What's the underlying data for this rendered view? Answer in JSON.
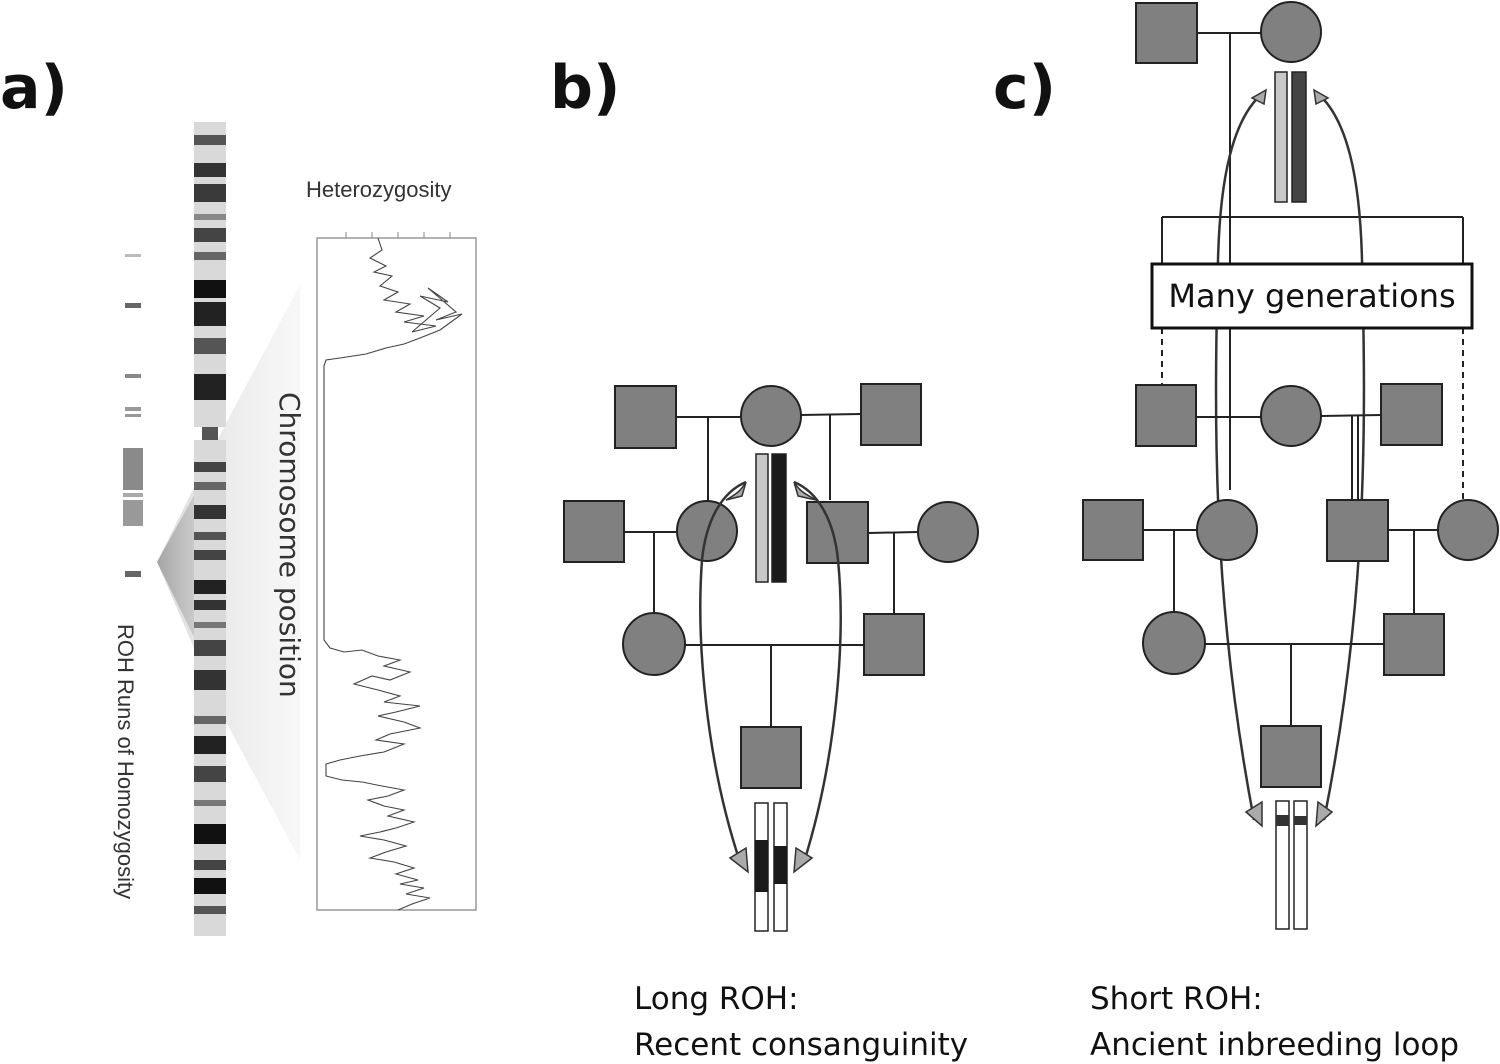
{
  "panels": {
    "a": {
      "label": "a)",
      "heterozygosity_label": "Heterozygosity",
      "chromosome_position_label": "Chromosome position",
      "roh_label": "ROH Runs of Homozygosity"
    },
    "b": {
      "label": "b)",
      "caption_line1": "Long ROH:",
      "caption_line2": "Recent consanguinity"
    },
    "c": {
      "label": "c)",
      "many_generations": "Many generations",
      "caption_line1": "Short ROH:",
      "caption_line2": "Ancient inbreeding loop"
    }
  },
  "colors": {
    "node_fill": "#808080",
    "stroke": "#222222",
    "light_chromosome": "#c8c8c8",
    "dark_chromosome": "#1a1a1a"
  }
}
